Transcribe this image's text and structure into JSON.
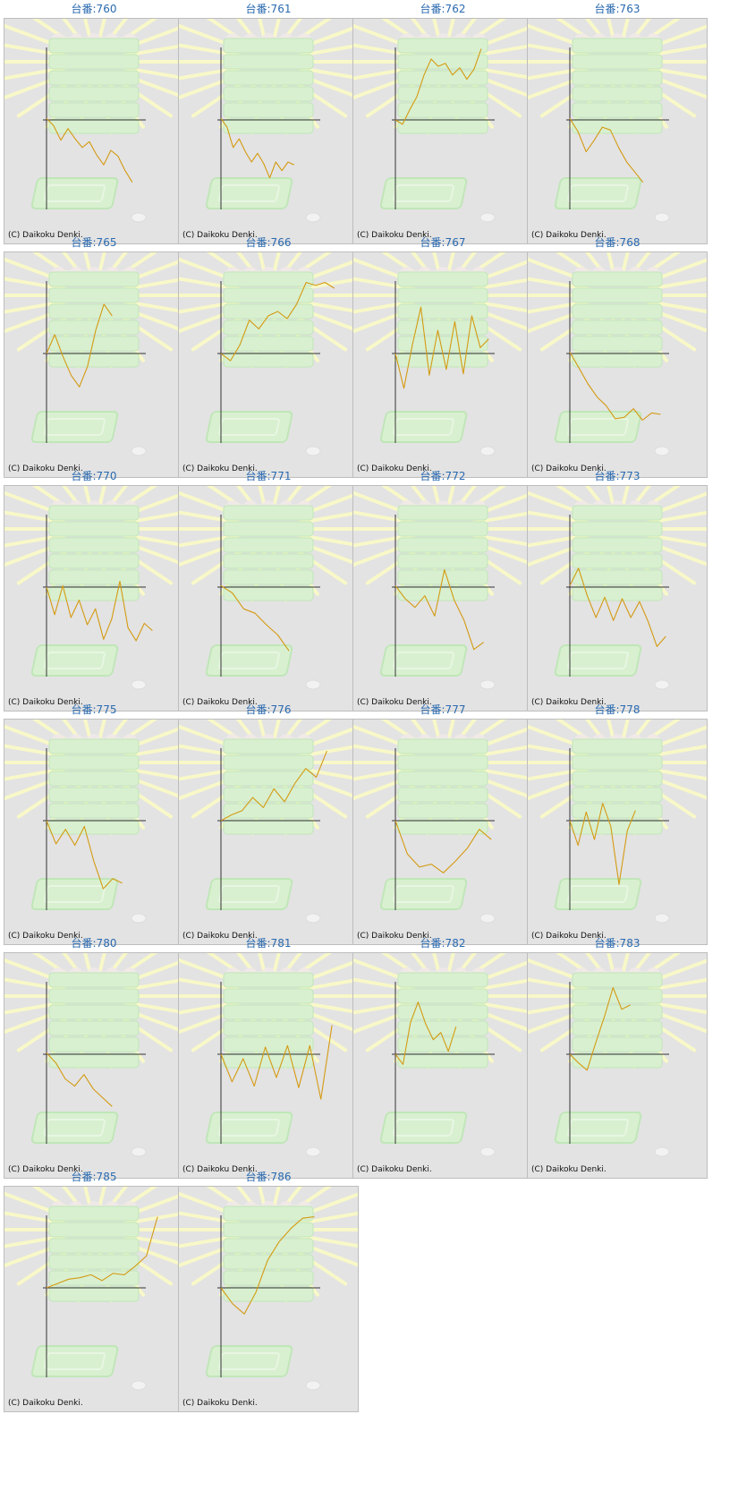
{
  "colors": {
    "title": "#2a6ab0",
    "panel_bg": "#e3e3e3",
    "panel_border": "#bdbdbd",
    "axis": "#333333",
    "line": "#d49a12",
    "rays": "#f8f8c8",
    "machine": "#d8f0d0",
    "machine_edge": "#c0e6b8"
  },
  "copyright": "(C) Daikoku Denki.",
  "machines": [
    {
      "title": "台番:760",
      "line": [
        0.02,
        -0.08,
        -0.28,
        -0.12,
        -0.26,
        -0.38,
        -0.3,
        -0.48,
        -0.62,
        -0.42,
        -0.5,
        -0.7,
        -0.86
      ],
      "x_end": 0.68
    },
    {
      "title": "台番:761",
      "line": [
        0.02,
        -0.1,
        -0.38,
        -0.26,
        -0.44,
        -0.58,
        -0.46,
        -0.6,
        -0.8,
        -0.58,
        -0.7,
        -0.58,
        -0.62
      ],
      "x_end": 0.58
    },
    {
      "title": "台番:762",
      "line": [
        0.0,
        -0.06,
        0.14,
        0.32,
        0.62,
        0.84,
        0.74,
        0.78,
        0.62,
        0.72,
        0.56,
        0.7,
        0.98
      ],
      "x_end": 0.68
    },
    {
      "title": "台番:763",
      "line": [
        0.02,
        -0.16,
        -0.44,
        -0.28,
        -0.1,
        -0.14,
        -0.38,
        -0.58,
        -0.72,
        -0.86
      ],
      "x_end": 0.58
    },
    {
      "title": "台番:765",
      "line": [
        0.0,
        0.26,
        -0.04,
        -0.3,
        -0.46,
        -0.18,
        0.32,
        0.68,
        0.52
      ],
      "x_end": 0.52
    },
    {
      "title": "台番:766",
      "line": [
        0.0,
        -0.1,
        0.12,
        0.46,
        0.34,
        0.52,
        0.58,
        0.48,
        0.68,
        0.98,
        0.94,
        0.98,
        0.9
      ],
      "x_end": 0.9
    },
    {
      "title": "台番:767",
      "line": [
        0.0,
        -0.48,
        0.12,
        0.64,
        -0.3,
        0.32,
        -0.22,
        0.44,
        -0.28,
        0.52,
        0.08,
        0.2
      ],
      "x_end": 0.74
    },
    {
      "title": "台番:768",
      "line": [
        0.02,
        -0.2,
        -0.42,
        -0.6,
        -0.72,
        -0.9,
        -0.88,
        -0.76,
        -0.92,
        -0.82,
        -0.84
      ],
      "x_end": 0.72
    },
    {
      "title": "台番:770",
      "line": [
        0.0,
        -0.38,
        0.02,
        -0.42,
        -0.18,
        -0.52,
        -0.3,
        -0.72,
        -0.44,
        0.08,
        -0.56,
        -0.74,
        -0.5,
        -0.6
      ],
      "x_end": 0.84
    },
    {
      "title": "台番:771",
      "line": [
        0.02,
        -0.08,
        -0.3,
        -0.36,
        -0.52,
        -0.66,
        -0.88
      ],
      "x_end": 0.54
    },
    {
      "title": "台番:772",
      "line": [
        0.02,
        -0.16,
        -0.28,
        -0.12,
        -0.4,
        0.24,
        -0.18,
        -0.46,
        -0.86,
        -0.76
      ],
      "x_end": 0.7
    },
    {
      "title": "台番:773",
      "line": [
        0.02,
        0.26,
        -0.12,
        -0.42,
        -0.14,
        -0.46,
        -0.16,
        -0.42,
        -0.2,
        -0.48,
        -0.82,
        -0.68
      ],
      "x_end": 0.76
    },
    {
      "title": "台番:775",
      "line": [
        0.0,
        -0.32,
        -0.12,
        -0.34,
        -0.08,
        -0.56,
        -0.94,
        -0.8,
        -0.86
      ],
      "x_end": 0.6
    },
    {
      "title": "台番:776",
      "line": [
        0.0,
        0.08,
        0.14,
        0.32,
        0.18,
        0.44,
        0.26,
        0.52,
        0.72,
        0.6,
        0.96
      ],
      "x_end": 0.84
    },
    {
      "title": "台番:777",
      "line": [
        0.0,
        -0.46,
        -0.64,
        -0.6,
        -0.72,
        -0.56,
        -0.38,
        -0.12,
        -0.26
      ],
      "x_end": 0.76
    },
    {
      "title": "台番:778",
      "line": [
        0.0,
        -0.34,
        0.12,
        -0.26,
        0.24,
        -0.08,
        -0.88,
        -0.14,
        0.14
      ],
      "x_end": 0.52
    },
    {
      "title": "台番:780",
      "line": [
        0.02,
        -0.12,
        -0.34,
        -0.44,
        -0.28,
        -0.48,
        -0.6,
        -0.72
      ],
      "x_end": 0.52
    },
    {
      "title": "台番:781",
      "line": [
        0.0,
        -0.38,
        -0.06,
        -0.44,
        0.1,
        -0.32,
        0.12,
        -0.46,
        0.12,
        -0.62,
        0.4
      ],
      "x_end": 0.88
    },
    {
      "title": "台番:782",
      "line": [
        0.0,
        -0.14,
        0.44,
        0.72,
        0.42,
        0.2,
        0.3,
        0.04,
        0.38
      ],
      "x_end": 0.48
    },
    {
      "title": "台番:783",
      "line": [
        0.0,
        -0.12,
        -0.22,
        0.16,
        0.52,
        0.92,
        0.62,
        0.68
      ],
      "x_end": 0.48
    },
    {
      "title": "台番:785",
      "line": [
        0.0,
        0.06,
        0.12,
        0.14,
        0.18,
        0.1,
        0.2,
        0.18,
        0.3,
        0.44,
        0.98
      ],
      "x_end": 0.88
    },
    {
      "title": "台番:786",
      "line": [
        0.0,
        -0.22,
        -0.36,
        -0.06,
        0.38,
        0.64,
        0.82,
        0.96,
        0.98
      ],
      "x_end": 0.74
    }
  ]
}
